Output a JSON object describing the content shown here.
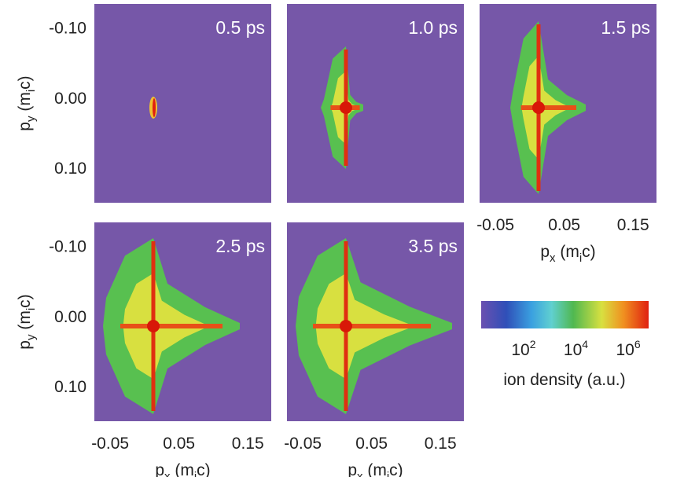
{
  "panels": [
    {
      "time": "0.5 ps"
    },
    {
      "time": "1.0 ps"
    },
    {
      "time": "1.5 ps"
    },
    {
      "time": "2.5 ps"
    },
    {
      "time": "3.5 ps"
    }
  ],
  "xticks": [
    {
      "value": -0.05,
      "label": "-0.05"
    },
    {
      "value": 0.05,
      "label": "0.05"
    },
    {
      "value": 0.15,
      "label": "0.15"
    }
  ],
  "yticks": [
    {
      "value": -0.1,
      "label": "-0.10"
    },
    {
      "value": 0,
      "label": "0.00"
    },
    {
      "value": 0.1,
      "label": "0.10"
    }
  ],
  "x_label": {
    "main": "p",
    "sub": "x",
    "unit": " (m",
    "unit_sub": "i",
    "unit_end": "c)"
  },
  "y_label": {
    "main": "p",
    "sub": "y",
    "unit": " (m",
    "unit_sub": "i",
    "unit_end": "c)"
  },
  "colorbar": {
    "label": "ion density (a.u.)",
    "ticks": [
      {
        "value": 100,
        "base": "10",
        "exponent": "2"
      },
      {
        "value": 10000,
        "base": "10",
        "exponent": "4"
      },
      {
        "value": 1000000,
        "base": "10",
        "exponent": "6"
      }
    ]
  }
}
